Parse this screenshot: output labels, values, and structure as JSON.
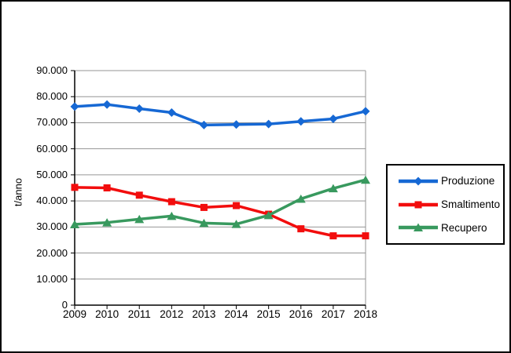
{
  "window": {
    "background": "#ffffff",
    "border_color": "#000000"
  },
  "chart_data": {
    "type": "line",
    "title": "",
    "xlabel": "",
    "ylabel": "t/anno",
    "categories": [
      "2009",
      "2010",
      "2011",
      "2012",
      "2013",
      "2014",
      "2015",
      "2016",
      "2017",
      "2018"
    ],
    "ylim": [
      0,
      90000
    ],
    "y_tick_step": 10000,
    "y_tick_labels": [
      "0",
      "10.000",
      "20.000",
      "30.000",
      "40.000",
      "50.000",
      "60.000",
      "70.000",
      "80.000",
      "90.000"
    ],
    "grid": true,
    "gridline_color": "#969696",
    "axis_color": "#000000",
    "legend_position": "right",
    "series": [
      {
        "name": "Produzione",
        "color": "#1668D4",
        "marker": "diamond",
        "values": [
          76200,
          77000,
          75400,
          73900,
          69100,
          69300,
          69500,
          70500,
          71500,
          74400
        ]
      },
      {
        "name": "Smaltimento",
        "color": "#F20D0D",
        "marker": "square",
        "values": [
          45200,
          45000,
          42200,
          39700,
          37500,
          38200,
          34900,
          29300,
          26600,
          26600
        ]
      },
      {
        "name": "Recupero",
        "color": "#38995E",
        "marker": "triangle",
        "values": [
          31000,
          31700,
          33000,
          34200,
          31500,
          31100,
          34500,
          40800,
          44800,
          48100
        ]
      }
    ]
  }
}
